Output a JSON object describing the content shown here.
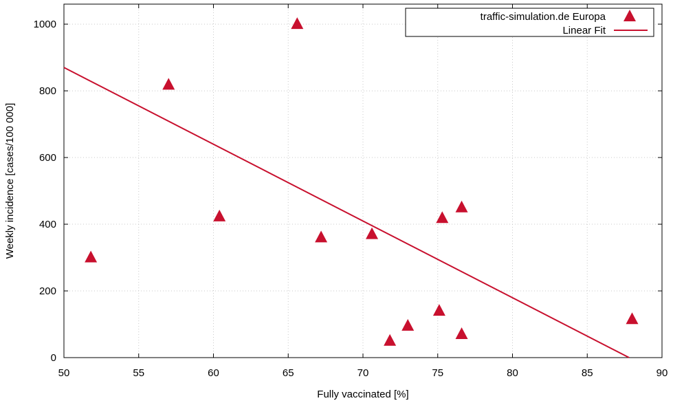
{
  "chart_data": {
    "type": "scatter",
    "xlabel": "Fully vaccinated [%]",
    "ylabel": "Weekly incidence [cases/100 000]",
    "xlim": [
      50,
      90
    ],
    "ylim": [
      0,
      1060
    ],
    "x_ticks": [
      50,
      55,
      60,
      65,
      70,
      75,
      80,
      85,
      90
    ],
    "y_ticks": [
      0,
      200,
      400,
      600,
      800,
      1000
    ],
    "grid": true,
    "legend_position": "top-right",
    "series": [
      {
        "name": "traffic-simulation.de Europa",
        "kind": "scatter",
        "marker": "triangle",
        "color": "#c8102e",
        "points": [
          {
            "x": 51.8,
            "y": 300
          },
          {
            "x": 57.0,
            "y": 818
          },
          {
            "x": 60.4,
            "y": 423
          },
          {
            "x": 65.6,
            "y": 1000
          },
          {
            "x": 67.2,
            "y": 360
          },
          {
            "x": 70.6,
            "y": 370
          },
          {
            "x": 71.8,
            "y": 50
          },
          {
            "x": 73.0,
            "y": 95
          },
          {
            "x": 75.1,
            "y": 140
          },
          {
            "x": 75.3,
            "y": 418
          },
          {
            "x": 76.6,
            "y": 450
          },
          {
            "x": 76.6,
            "y": 70
          },
          {
            "x": 88.0,
            "y": 115
          }
        ]
      },
      {
        "name": "Linear Fit",
        "kind": "line",
        "color": "#c8102e",
        "points": [
          {
            "x": 50,
            "y": 870
          },
          {
            "x": 87.8,
            "y": 0
          }
        ]
      }
    ]
  }
}
